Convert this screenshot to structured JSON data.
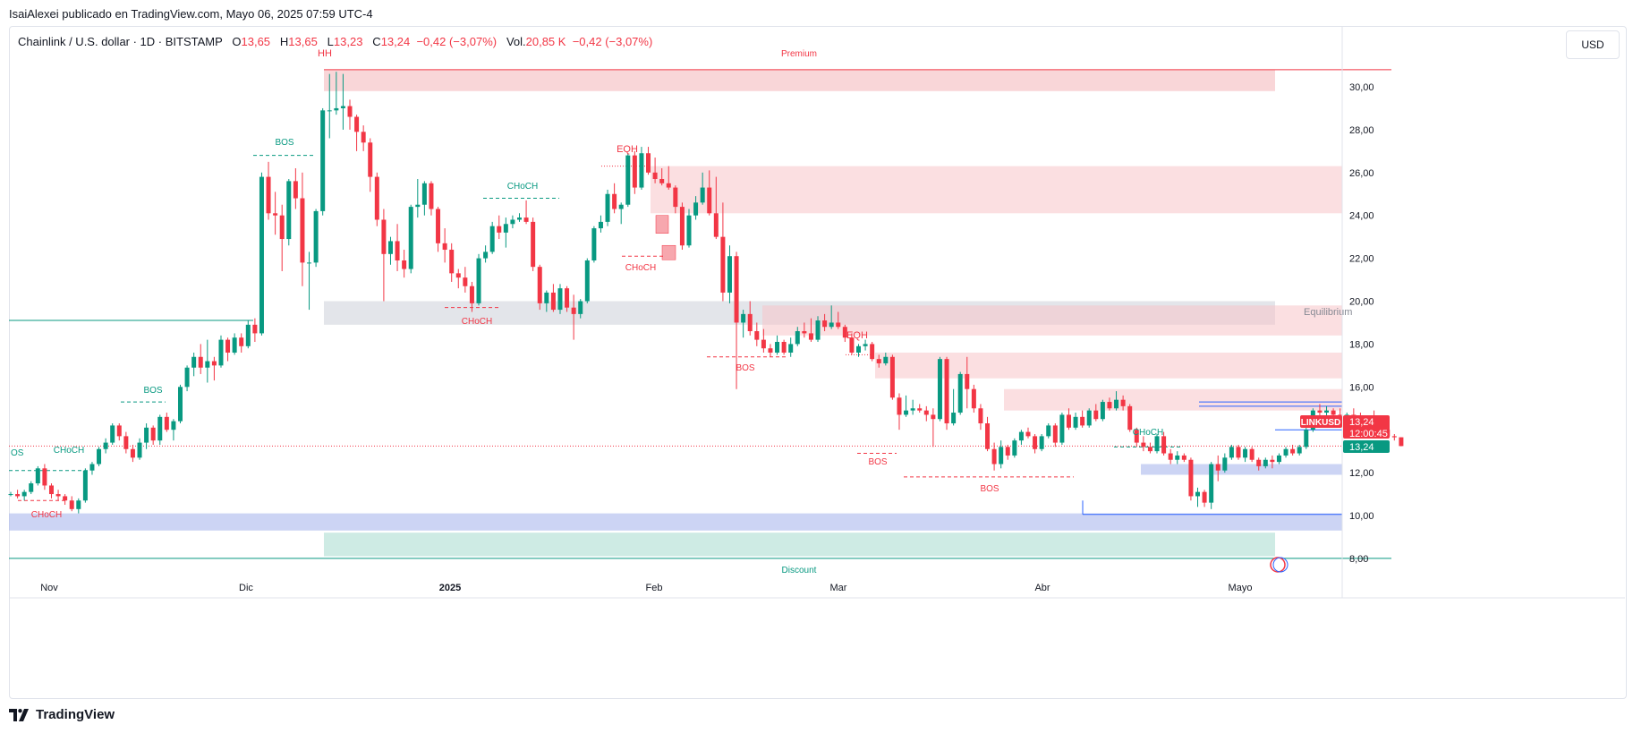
{
  "header": {
    "published": "IsaiAlexei publicado en TradingView.com, Mayo 06, 2025 07:59 UTC-4"
  },
  "legend": {
    "symbol": "Chainlink / U.S. dollar · 1D · BITSTAMP",
    "o_label": "O",
    "o_value": "13,65",
    "h_label": "H",
    "h_value": "13,65",
    "l_label": "L",
    "l_value": "13,23",
    "c_label": "C",
    "c_value": "13,24",
    "change": "−0,42 (−3,07%)",
    "vol_label": "Vol.",
    "vol_value": "20,85 K",
    "vol_change": "−0,42 (−3,07%)"
  },
  "currency_button": "USD",
  "footer": {
    "brand": "TradingView",
    "logo_icon": "tradingview-logo-icon"
  },
  "colors": {
    "up": "#089981",
    "down": "#f23645",
    "premium_zone": "#f7c5c8",
    "discount_zone": "#b3e0d5",
    "demand_zone": "#b0bdee",
    "equilibrium": "#d1d4dc"
  },
  "chart_data": {
    "type": "candlestick",
    "symbol": "LINKUSD",
    "ylim": [
      7.6,
      31.6
    ],
    "yticks": [
      "30,00",
      "28,00",
      "26,00",
      "24,00",
      "22,00",
      "20,00",
      "18,00",
      "16,00",
      "14,00",
      "12,00",
      "10,00",
      "8,00"
    ],
    "xticks": [
      "Nov",
      "Dic",
      "2025",
      "Feb",
      "Mar",
      "Abr",
      "Mayo"
    ],
    "last_price_label": "LINKUSD",
    "last_price": "13,24",
    "countdown": "12:00:45",
    "last_price_2": "13,24",
    "ohlc": [
      [
        11.0,
        11.1,
        10.9,
        11.0
      ],
      [
        11.0,
        11.2,
        10.8,
        10.9
      ],
      [
        10.9,
        11.2,
        10.7,
        11.1
      ],
      [
        11.1,
        11.6,
        11.0,
        11.5
      ],
      [
        11.5,
        12.3,
        11.4,
        12.2
      ],
      [
        12.2,
        12.4,
        11.2,
        11.4
      ],
      [
        11.4,
        11.5,
        10.8,
        11.0
      ],
      [
        11.0,
        11.2,
        10.7,
        10.9
      ],
      [
        10.9,
        11.0,
        10.5,
        10.7
      ],
      [
        10.7,
        10.9,
        10.2,
        10.3
      ],
      [
        10.3,
        10.8,
        10.1,
        10.7
      ],
      [
        10.7,
        12.2,
        10.6,
        12.1
      ],
      [
        12.1,
        12.5,
        11.9,
        12.4
      ],
      [
        12.4,
        13.2,
        12.3,
        13.1
      ],
      [
        13.1,
        13.6,
        12.9,
        13.4
      ],
      [
        13.4,
        14.3,
        13.3,
        14.2
      ],
      [
        14.2,
        14.3,
        13.5,
        13.7
      ],
      [
        13.7,
        13.9,
        12.9,
        13.1
      ],
      [
        13.1,
        13.3,
        12.5,
        12.7
      ],
      [
        12.7,
        13.6,
        12.6,
        13.4
      ],
      [
        13.4,
        14.3,
        13.1,
        14.1
      ],
      [
        14.1,
        14.2,
        13.3,
        13.5
      ],
      [
        13.5,
        14.7,
        13.3,
        14.6
      ],
      [
        14.6,
        14.8,
        13.9,
        14.0
      ],
      [
        14.0,
        14.5,
        13.5,
        14.4
      ],
      [
        14.4,
        16.1,
        14.3,
        16.0
      ],
      [
        16.0,
        17.0,
        15.8,
        16.9
      ],
      [
        16.9,
        17.6,
        16.5,
        17.4
      ],
      [
        17.4,
        18.0,
        16.6,
        16.9
      ],
      [
        16.9,
        18.2,
        16.2,
        17.2
      ],
      [
        17.2,
        17.4,
        16.3,
        17.0
      ],
      [
        17.0,
        18.4,
        16.9,
        18.2
      ],
      [
        18.2,
        18.3,
        17.2,
        17.6
      ],
      [
        17.6,
        18.5,
        17.5,
        18.3
      ],
      [
        18.3,
        18.5,
        17.6,
        17.9
      ],
      [
        17.9,
        19.1,
        17.8,
        18.9
      ],
      [
        18.9,
        19.2,
        18.1,
        18.5
      ],
      [
        18.5,
        26.0,
        18.4,
        25.8
      ],
      [
        25.8,
        26.5,
        23.8,
        24.1
      ],
      [
        24.1,
        25.1,
        23.1,
        24.0
      ],
      [
        24.0,
        24.5,
        21.4,
        22.9
      ],
      [
        22.9,
        25.7,
        22.6,
        25.6
      ],
      [
        25.6,
        26.2,
        24.3,
        24.8
      ],
      [
        24.8,
        26.0,
        20.7,
        21.8
      ],
      [
        21.8,
        22.3,
        19.6,
        21.8
      ],
      [
        21.8,
        24.3,
        21.6,
        24.2
      ],
      [
        24.2,
        29.0,
        24.0,
        28.9
      ],
      [
        28.9,
        30.6,
        27.6,
        28.9
      ],
      [
        28.9,
        30.7,
        28.7,
        29.0
      ],
      [
        29.0,
        30.6,
        28.0,
        29.1
      ],
      [
        29.1,
        29.4,
        28.0,
        28.6
      ],
      [
        28.6,
        28.7,
        27.0,
        27.9
      ],
      [
        27.9,
        28.2,
        27.0,
        27.4
      ],
      [
        27.4,
        27.6,
        25.1,
        25.8
      ],
      [
        25.8,
        26.0,
        23.5,
        23.8
      ],
      [
        23.8,
        24.3,
        20.0,
        22.2
      ],
      [
        22.2,
        23.0,
        21.7,
        22.8
      ],
      [
        22.8,
        23.6,
        21.4,
        21.9
      ],
      [
        21.9,
        22.4,
        21.1,
        21.5
      ],
      [
        21.5,
        24.5,
        21.3,
        24.4
      ],
      [
        24.4,
        25.7,
        23.9,
        24.5
      ],
      [
        24.5,
        25.6,
        24.0,
        25.5
      ],
      [
        25.5,
        25.6,
        24.0,
        24.3
      ],
      [
        24.3,
        24.4,
        22.3,
        22.7
      ],
      [
        22.7,
        23.4,
        21.8,
        22.4
      ],
      [
        22.4,
        22.7,
        20.9,
        21.3
      ],
      [
        21.3,
        21.5,
        20.6,
        21.1
      ],
      [
        21.1,
        21.6,
        20.4,
        20.7
      ],
      [
        20.7,
        20.9,
        19.5,
        19.9
      ],
      [
        19.9,
        22.2,
        19.8,
        22.0
      ],
      [
        22.0,
        22.6,
        21.8,
        22.3
      ],
      [
        22.3,
        23.7,
        22.2,
        23.5
      ],
      [
        23.5,
        24.0,
        22.9,
        23.2
      ],
      [
        23.2,
        23.9,
        22.5,
        23.6
      ],
      [
        23.6,
        24.0,
        23.4,
        23.8
      ],
      [
        23.8,
        24.1,
        23.7,
        23.9
      ],
      [
        23.9,
        24.7,
        23.6,
        23.7
      ],
      [
        23.7,
        23.9,
        21.4,
        21.6
      ],
      [
        21.6,
        21.7,
        19.6,
        19.9
      ],
      [
        19.9,
        20.5,
        19.5,
        20.4
      ],
      [
        20.4,
        20.8,
        19.5,
        19.6
      ],
      [
        19.6,
        20.8,
        19.4,
        20.6
      ],
      [
        20.6,
        20.7,
        19.5,
        19.7
      ],
      [
        19.7,
        20.3,
        18.2,
        19.4
      ],
      [
        19.4,
        20.1,
        19.2,
        20.0
      ],
      [
        20.0,
        22.0,
        19.9,
        21.9
      ],
      [
        21.9,
        23.5,
        21.8,
        23.4
      ],
      [
        23.4,
        24.0,
        23.2,
        23.7
      ],
      [
        23.7,
        25.2,
        23.5,
        25.0
      ],
      [
        25.0,
        25.5,
        24.1,
        24.3
      ],
      [
        24.3,
        24.6,
        23.6,
        24.5
      ],
      [
        24.5,
        26.9,
        24.4,
        26.8
      ],
      [
        26.8,
        27.0,
        25.0,
        25.3
      ],
      [
        25.3,
        27.2,
        25.2,
        26.9
      ],
      [
        26.9,
        27.2,
        25.9,
        26.0
      ],
      [
        26.0,
        26.7,
        25.5,
        25.7
      ],
      [
        25.7,
        26.2,
        25.4,
        25.5
      ],
      [
        25.5,
        26.3,
        25.2,
        25.3
      ],
      [
        25.3,
        25.4,
        24.1,
        24.4
      ],
      [
        24.4,
        24.6,
        22.4,
        22.6
      ],
      [
        22.6,
        24.3,
        22.5,
        24.0
      ],
      [
        24.0,
        24.9,
        23.8,
        24.6
      ],
      [
        24.6,
        26.0,
        24.5,
        25.3
      ],
      [
        25.3,
        26.1,
        24.0,
        24.1
      ],
      [
        24.1,
        25.8,
        22.9,
        23.0
      ],
      [
        23.0,
        24.6,
        20.0,
        20.4
      ],
      [
        20.4,
        22.6,
        19.9,
        22.1
      ],
      [
        22.1,
        22.3,
        15.9,
        19.0
      ],
      [
        19.0,
        19.6,
        18.3,
        19.4
      ],
      [
        19.4,
        20.0,
        18.4,
        18.6
      ],
      [
        18.6,
        19.0,
        17.9,
        18.2
      ],
      [
        18.2,
        18.7,
        17.6,
        17.8
      ],
      [
        17.8,
        18.0,
        17.4,
        17.6
      ],
      [
        17.6,
        18.4,
        17.5,
        18.1
      ],
      [
        18.1,
        18.2,
        17.5,
        17.6
      ],
      [
        17.6,
        18.3,
        17.4,
        18.0
      ],
      [
        18.0,
        18.8,
        17.9,
        18.6
      ],
      [
        18.6,
        19.0,
        18.3,
        18.5
      ],
      [
        18.5,
        19.2,
        18.1,
        18.2
      ],
      [
        18.2,
        19.3,
        18.1,
        19.1
      ],
      [
        19.1,
        19.4,
        18.6,
        18.8
      ],
      [
        18.8,
        19.8,
        18.7,
        19.0
      ],
      [
        19.0,
        19.5,
        18.7,
        18.8
      ],
      [
        18.8,
        18.9,
        18.1,
        18.3
      ],
      [
        18.3,
        18.5,
        17.5,
        17.6
      ],
      [
        17.6,
        18.0,
        17.4,
        17.9
      ],
      [
        17.9,
        18.2,
        17.7,
        18.0
      ],
      [
        18.0,
        18.1,
        17.2,
        17.3
      ],
      [
        17.3,
        17.5,
        16.9,
        17.1
      ],
      [
        17.1,
        17.6,
        17.0,
        17.4
      ],
      [
        17.4,
        17.5,
        15.4,
        15.5
      ],
      [
        15.5,
        15.7,
        14.0,
        14.7
      ],
      [
        14.7,
        15.6,
        14.6,
        14.9
      ],
      [
        14.9,
        15.4,
        14.7,
        15.0
      ],
      [
        15.0,
        15.2,
        14.8,
        14.9
      ],
      [
        14.9,
        15.1,
        14.4,
        14.7
      ],
      [
        14.7,
        15.0,
        13.2,
        14.5
      ],
      [
        14.5,
        17.4,
        14.4,
        17.3
      ],
      [
        17.3,
        17.4,
        14.0,
        14.3
      ],
      [
        14.3,
        15.9,
        14.2,
        14.8
      ],
      [
        14.8,
        16.7,
        14.7,
        16.6
      ],
      [
        16.6,
        17.4,
        15.0,
        15.9
      ],
      [
        15.9,
        16.1,
        14.8,
        15.0
      ],
      [
        15.0,
        15.2,
        14.0,
        14.3
      ],
      [
        14.3,
        14.6,
        13.0,
        13.1
      ],
      [
        13.1,
        13.4,
        12.1,
        12.4
      ],
      [
        12.4,
        13.5,
        12.2,
        13.2
      ],
      [
        13.2,
        13.3,
        12.6,
        12.8
      ],
      [
        12.8,
        13.6,
        12.7,
        13.5
      ],
      [
        13.5,
        14.0,
        13.3,
        13.9
      ],
      [
        13.9,
        14.1,
        13.6,
        13.7
      ],
      [
        13.7,
        13.8,
        12.9,
        13.1
      ],
      [
        13.1,
        13.8,
        13.0,
        13.7
      ],
      [
        13.7,
        14.3,
        13.6,
        14.2
      ],
      [
        14.2,
        14.3,
        13.2,
        13.4
      ],
      [
        13.4,
        14.8,
        13.3,
        14.7
      ],
      [
        14.7,
        15.0,
        14.0,
        14.1
      ],
      [
        14.1,
        14.8,
        14.0,
        14.6
      ],
      [
        14.6,
        14.9,
        14.1,
        14.2
      ],
      [
        14.2,
        15.0,
        14.1,
        14.9
      ],
      [
        14.9,
        15.2,
        14.4,
        14.5
      ],
      [
        14.5,
        15.4,
        14.4,
        15.3
      ],
      [
        15.3,
        15.5,
        14.9,
        15.0
      ],
      [
        15.0,
        15.8,
        14.9,
        15.4
      ],
      [
        15.4,
        15.6,
        14.9,
        15.1
      ],
      [
        15.1,
        15.2,
        13.9,
        14.0
      ],
      [
        14.0,
        14.1,
        13.2,
        13.4
      ],
      [
        13.4,
        13.7,
        13.0,
        13.2
      ],
      [
        13.2,
        13.4,
        12.9,
        13.0
      ],
      [
        13.0,
        13.8,
        12.9,
        13.7
      ],
      [
        13.7,
        13.9,
        12.8,
        12.9
      ],
      [
        12.9,
        13.1,
        12.4,
        12.6
      ],
      [
        12.6,
        13.0,
        12.4,
        12.8
      ],
      [
        12.8,
        12.9,
        12.5,
        12.6
      ],
      [
        12.6,
        12.7,
        10.7,
        10.9
      ],
      [
        10.9,
        11.3,
        10.4,
        11.1
      ],
      [
        11.1,
        11.2,
        10.4,
        10.6
      ],
      [
        10.6,
        12.5,
        10.3,
        12.4
      ],
      [
        12.4,
        12.8,
        11.6,
        12.1
      ],
      [
        12.1,
        12.9,
        12.0,
        12.7
      ],
      [
        12.7,
        13.3,
        12.6,
        13.2
      ],
      [
        13.2,
        13.3,
        12.6,
        12.7
      ],
      [
        12.7,
        13.2,
        12.5,
        13.1
      ],
      [
        13.1,
        13.2,
        12.5,
        12.6
      ],
      [
        12.6,
        12.7,
        12.1,
        12.3
      ],
      [
        12.3,
        12.7,
        12.2,
        12.6
      ],
      [
        12.6,
        12.8,
        12.2,
        12.5
      ],
      [
        12.5,
        12.9,
        12.4,
        12.8
      ],
      [
        12.8,
        13.2,
        12.7,
        13.1
      ],
      [
        13.1,
        13.3,
        12.8,
        12.9
      ],
      [
        12.9,
        13.3,
        12.8,
        13.2
      ],
      [
        13.2,
        14.1,
        13.1,
        14.0
      ],
      [
        14.0,
        15.0,
        13.9,
        14.9
      ],
      [
        14.9,
        15.2,
        14.6,
        14.8
      ],
      [
        14.8,
        15.1,
        14.6,
        14.9
      ],
      [
        14.9,
        15.0,
        14.5,
        14.7
      ],
      [
        14.7,
        15.0,
        14.5,
        14.6
      ],
      [
        14.6,
        14.8,
        14.4,
        14.7
      ],
      [
        14.7,
        15.0,
        14.4,
        14.5
      ],
      [
        14.5,
        14.8,
        14.0,
        14.2
      ],
      [
        14.2,
        14.6,
        14.1,
        14.5
      ],
      [
        14.5,
        14.9,
        14.3,
        14.4
      ],
      [
        14.4,
        14.5,
        13.9,
        14.0
      ],
      [
        14.0,
        14.2,
        13.6,
        13.7
      ],
      [
        13.7,
        13.8,
        13.5,
        13.65
      ],
      [
        13.65,
        13.65,
        13.23,
        13.24
      ]
    ],
    "zones": [
      {
        "kind": "premium",
        "y0": 29.8,
        "y1": 30.8
      },
      {
        "kind": "supply",
        "y0": 24.1,
        "y1": 26.3
      },
      {
        "kind": "equilibrium",
        "y0": 18.9,
        "y1": 20.0
      },
      {
        "kind": "supply",
        "y0": 18.4,
        "y1": 19.8
      },
      {
        "kind": "supply",
        "y0": 16.4,
        "y1": 17.6
      },
      {
        "kind": "supply",
        "y0": 14.9,
        "y1": 15.9
      },
      {
        "kind": "demand",
        "y0": 11.9,
        "y1": 12.4
      },
      {
        "kind": "demand",
        "y0": 9.3,
        "y1": 10.1
      },
      {
        "kind": "discount",
        "y0": 8.1,
        "y1": 9.2
      }
    ],
    "structure_labels": [
      {
        "text": "HH",
        "color": "down"
      },
      {
        "text": "Premium",
        "color": "down"
      },
      {
        "text": "EQH",
        "color": "down"
      },
      {
        "text": "EQH",
        "color": "down"
      },
      {
        "text": "Equilibrium",
        "color": "muted"
      },
      {
        "text": "Discount",
        "color": "up"
      },
      {
        "text": "BOS",
        "color": "up"
      },
      {
        "text": "BOS",
        "color": "up"
      },
      {
        "text": "CHoCH",
        "color": "up"
      },
      {
        "text": "CHoCH",
        "color": "up"
      },
      {
        "text": "CHoCH",
        "color": "up"
      },
      {
        "text": "OS",
        "color": "up"
      },
      {
        "text": "CHoCH",
        "color": "down"
      },
      {
        "text": "CHoCH",
        "color": "down"
      },
      {
        "text": "CHoCH",
        "color": "down"
      },
      {
        "text": "BOS",
        "color": "down"
      },
      {
        "text": "BOS",
        "color": "down"
      },
      {
        "text": "BOS",
        "color": "down"
      }
    ]
  }
}
